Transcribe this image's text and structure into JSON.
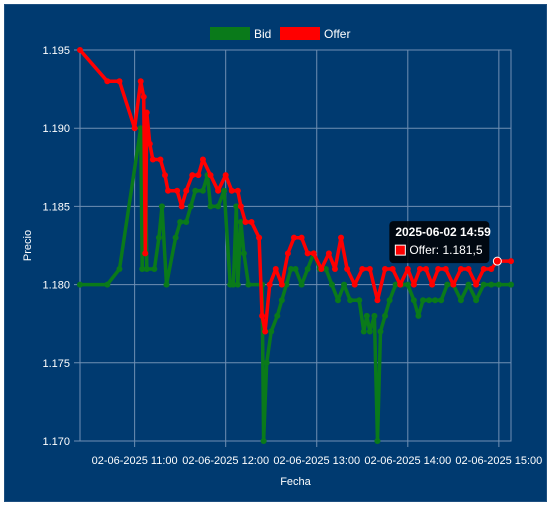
{
  "chart_data": {
    "type": "line",
    "xlabel": "Fecha",
    "ylabel": "Precio",
    "ylim": [
      1.17,
      1.195
    ],
    "yticks": [
      "1.195",
      "1.190",
      "1.185",
      "1.180",
      "1.175",
      "1.170"
    ],
    "xlim": [
      "2025-06-02 10:24",
      "2025-06-02 15:08"
    ],
    "xticks": [
      {
        "time": "2025-06-02 11:00",
        "label": "02-06-2025 11:00"
      },
      {
        "time": "2025-06-02 12:00",
        "label": "02-06-2025 12:00"
      },
      {
        "time": "2025-06-02 13:00",
        "label": "02-06-2025 13:00"
      },
      {
        "time": "2025-06-02 14:00",
        "label": "02-06-2025 14:00"
      },
      {
        "time": "2025-06-02 15:00",
        "label": "02-06-2025 15:00"
      }
    ],
    "grid": true,
    "legend_position": "top",
    "series": [
      {
        "name": "Bid",
        "color": "#0a7a1a",
        "points": [
          [
            "10:24",
            1.18
          ],
          [
            "10:42",
            1.18
          ],
          [
            "10:50",
            1.181
          ],
          [
            "11:04",
            1.19
          ],
          [
            "11:05",
            1.181
          ],
          [
            "11:07",
            1.189
          ],
          [
            "11:08",
            1.181
          ],
          [
            "11:13",
            1.181
          ],
          [
            "11:16",
            1.183
          ],
          [
            "11:18",
            1.185
          ],
          [
            "11:21",
            1.18
          ],
          [
            "11:27",
            1.183
          ],
          [
            "11:30",
            1.184
          ],
          [
            "11:34",
            1.184
          ],
          [
            "11:37",
            1.185
          ],
          [
            "11:40",
            1.186
          ],
          [
            "11:45",
            1.186
          ],
          [
            "11:48",
            1.187
          ],
          [
            "11:50",
            1.185
          ],
          [
            "11:55",
            1.185
          ],
          [
            "11:59",
            1.186
          ],
          [
            "12:03",
            1.18
          ],
          [
            "12:05",
            1.18
          ],
          [
            "12:07",
            1.185
          ],
          [
            "12:08",
            1.18
          ],
          [
            "12:10",
            1.184
          ],
          [
            "12:12",
            1.182
          ],
          [
            "12:15",
            1.18
          ],
          [
            "12:24",
            1.18
          ],
          [
            "12:25",
            1.17
          ],
          [
            "12:27",
            1.175
          ],
          [
            "12:30",
            1.177
          ],
          [
            "12:34",
            1.178
          ],
          [
            "12:37",
            1.179
          ],
          [
            "12:40",
            1.18
          ],
          [
            "12:43",
            1.181
          ],
          [
            "12:46",
            1.181
          ],
          [
            "12:50",
            1.18
          ],
          [
            "12:54",
            1.181
          ],
          [
            "12:58",
            1.182
          ],
          [
            "13:02",
            1.181
          ],
          [
            "13:06",
            1.181
          ],
          [
            "13:10",
            1.18
          ],
          [
            "13:14",
            1.179
          ],
          [
            "13:18",
            1.18
          ],
          [
            "13:22",
            1.179
          ],
          [
            "13:28",
            1.179
          ],
          [
            "13:31",
            1.177
          ],
          [
            "13:33",
            1.178
          ],
          [
            "13:35",
            1.177
          ],
          [
            "13:38",
            1.178
          ],
          [
            "13:40",
            1.17
          ],
          [
            "13:42",
            1.177
          ],
          [
            "13:45",
            1.178
          ],
          [
            "13:48",
            1.179
          ],
          [
            "13:52",
            1.18
          ],
          [
            "13:56",
            1.18
          ],
          [
            "14:00",
            1.18
          ],
          [
            "14:04",
            1.179
          ],
          [
            "14:07",
            1.178
          ],
          [
            "14:10",
            1.179
          ],
          [
            "14:14",
            1.179
          ],
          [
            "14:18",
            1.179
          ],
          [
            "14:22",
            1.179
          ],
          [
            "14:26",
            1.18
          ],
          [
            "14:30",
            1.18
          ],
          [
            "14:35",
            1.179
          ],
          [
            "14:40",
            1.18
          ],
          [
            "14:45",
            1.179
          ],
          [
            "14:50",
            1.18
          ],
          [
            "14:55",
            1.18
          ],
          [
            "15:00",
            1.18
          ],
          [
            "15:08",
            1.18
          ]
        ]
      },
      {
        "name": "Offer",
        "color": "#ff0000",
        "points": [
          [
            "10:24",
            1.195
          ],
          [
            "10:42",
            1.193
          ],
          [
            "10:50",
            1.193
          ],
          [
            "11:00",
            1.19
          ],
          [
            "11:04",
            1.193
          ],
          [
            "11:06",
            1.192
          ],
          [
            "11:07",
            1.182
          ],
          [
            "11:08",
            1.191
          ],
          [
            "11:10",
            1.189
          ],
          [
            "11:12",
            1.188
          ],
          [
            "11:17",
            1.188
          ],
          [
            "11:20",
            1.187
          ],
          [
            "11:22",
            1.186
          ],
          [
            "11:28",
            1.186
          ],
          [
            "11:31",
            1.185
          ],
          [
            "11:34",
            1.186
          ],
          [
            "11:38",
            1.187
          ],
          [
            "11:42",
            1.187
          ],
          [
            "11:45",
            1.188
          ],
          [
            "11:50",
            1.187
          ],
          [
            "11:55",
            1.186
          ],
          [
            "12:00",
            1.187
          ],
          [
            "12:04",
            1.186
          ],
          [
            "12:08",
            1.186
          ],
          [
            "12:10",
            1.185
          ],
          [
            "12:13",
            1.184
          ],
          [
            "12:17",
            1.184
          ],
          [
            "12:22",
            1.183
          ],
          [
            "12:24",
            1.178
          ],
          [
            "12:26",
            1.177
          ],
          [
            "12:29",
            1.18
          ],
          [
            "12:33",
            1.181
          ],
          [
            "12:37",
            1.18
          ],
          [
            "12:41",
            1.182
          ],
          [
            "12:45",
            1.183
          ],
          [
            "12:50",
            1.183
          ],
          [
            "12:54",
            1.182
          ],
          [
            "12:58",
            1.182
          ],
          [
            "13:03",
            1.181
          ],
          [
            "13:08",
            1.182
          ],
          [
            "13:12",
            1.181
          ],
          [
            "13:16",
            1.183
          ],
          [
            "13:20",
            1.181
          ],
          [
            "13:25",
            1.18
          ],
          [
            "13:30",
            1.181
          ],
          [
            "13:35",
            1.181
          ],
          [
            "13:40",
            1.179
          ],
          [
            "13:45",
            1.181
          ],
          [
            "13:50",
            1.181
          ],
          [
            "13:55",
            1.18
          ],
          [
            "14:00",
            1.181
          ],
          [
            "14:04",
            1.18
          ],
          [
            "14:08",
            1.181
          ],
          [
            "14:12",
            1.181
          ],
          [
            "14:16",
            1.18
          ],
          [
            "14:20",
            1.181
          ],
          [
            "14:25",
            1.181
          ],
          [
            "14:30",
            1.18
          ],
          [
            "14:35",
            1.181
          ],
          [
            "14:40",
            1.181
          ],
          [
            "14:45",
            1.18
          ],
          [
            "14:50",
            1.181
          ],
          [
            "14:55",
            1.181
          ],
          [
            "14:59",
            1.1815
          ],
          [
            "15:08",
            1.1815
          ]
        ]
      }
    ],
    "tooltip": {
      "title": "2025-06-02 14:59",
      "label": "Offer: 1.181,5",
      "series": "Offer",
      "time": "14:59",
      "value": 1.1815
    }
  }
}
